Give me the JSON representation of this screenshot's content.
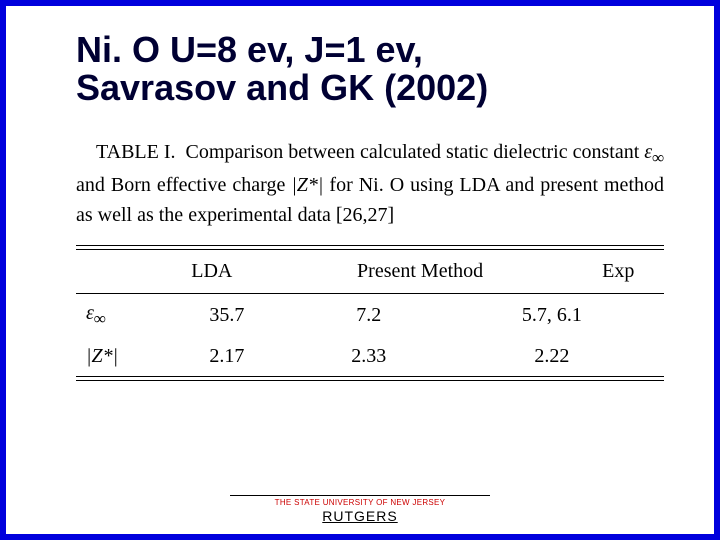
{
  "title": {
    "line1": "Ni. O U=8 ev, J=1 ev,",
    "line2": "Savrasov and GK (2002)"
  },
  "caption": {
    "prefix": "TABLE I.",
    "text_part1": "Comparison between calculated static dielectric constant ",
    "sym_eps": "ε",
    "sym_inf": "∞",
    "text_part2": " and Born effective charge ",
    "sym_zstar": "|Z*|",
    "text_part3": " for Ni. O using LDA and present method as well as the experimental data [26,27]"
  },
  "table": {
    "columns": [
      "",
      "LDA",
      "Present Method",
      "Exp"
    ],
    "rows": [
      {
        "label_sym": "ε",
        "label_sub": "∞",
        "lda": "35.7",
        "pm": "7.2",
        "exp": "5.7, 6.1"
      },
      {
        "label_plain": "|Z*|",
        "lda": "2.17",
        "pm": "2.33",
        "exp": "2.22"
      }
    ],
    "colors": {
      "rule": "#000000",
      "text": "#000000"
    },
    "fontsize": 20
  },
  "footer": {
    "university": "THE STATE UNIVERSITY OF NEW JERSEY",
    "name": "RUTGERS",
    "uni_color": "#cc0000"
  },
  "frame_color": "#0000dd"
}
